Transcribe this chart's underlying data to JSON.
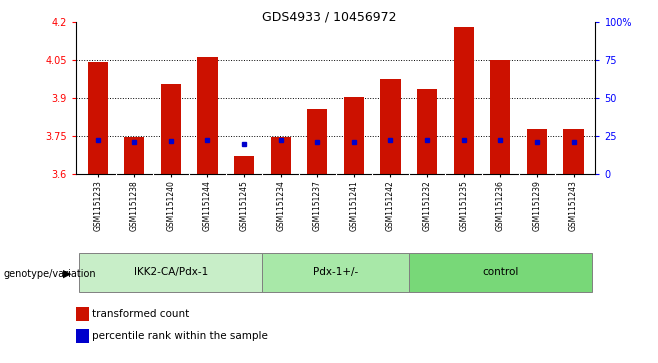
{
  "title": "GDS4933 / 10456972",
  "samples": [
    "GSM1151233",
    "GSM1151238",
    "GSM1151240",
    "GSM1151244",
    "GSM1151245",
    "GSM1151234",
    "GSM1151237",
    "GSM1151241",
    "GSM1151242",
    "GSM1151232",
    "GSM1151235",
    "GSM1151236",
    "GSM1151239",
    "GSM1151243"
  ],
  "red_values": [
    4.04,
    3.745,
    3.955,
    4.06,
    3.67,
    3.745,
    3.855,
    3.905,
    3.975,
    3.935,
    4.18,
    4.05,
    3.78,
    3.78
  ],
  "blue_values": [
    3.735,
    3.725,
    3.73,
    3.735,
    3.718,
    3.733,
    3.725,
    3.726,
    3.735,
    3.735,
    3.735,
    3.733,
    3.727,
    3.726
  ],
  "groups": [
    {
      "label": "IKK2-CA/Pdx-1",
      "start": 0,
      "end": 5
    },
    {
      "label": "Pdx-1+/-",
      "start": 5,
      "end": 9
    },
    {
      "label": "control",
      "start": 9,
      "end": 14
    }
  ],
  "ylim_left": [
    3.6,
    4.2
  ],
  "ylim_right": [
    0,
    100
  ],
  "yticks_left": [
    3.6,
    3.75,
    3.9,
    4.05,
    4.2
  ],
  "ytick_labels_left": [
    "3.6",
    "3.75",
    "3.9",
    "4.05",
    "4.2"
  ],
  "yticks_right": [
    0,
    25,
    50,
    75,
    100
  ],
  "ytick_labels_right": [
    "0",
    "25",
    "50",
    "75",
    "100%"
  ],
  "grid_lines": [
    3.75,
    3.9,
    4.05
  ],
  "bar_color": "#cc1100",
  "marker_color": "#0000cc",
  "bar_width": 0.55,
  "title_fontsize": 9,
  "legend_label_red": "transformed count",
  "legend_label_blue": "percentile rank within the sample",
  "xlabel_left": "genotype/variation"
}
